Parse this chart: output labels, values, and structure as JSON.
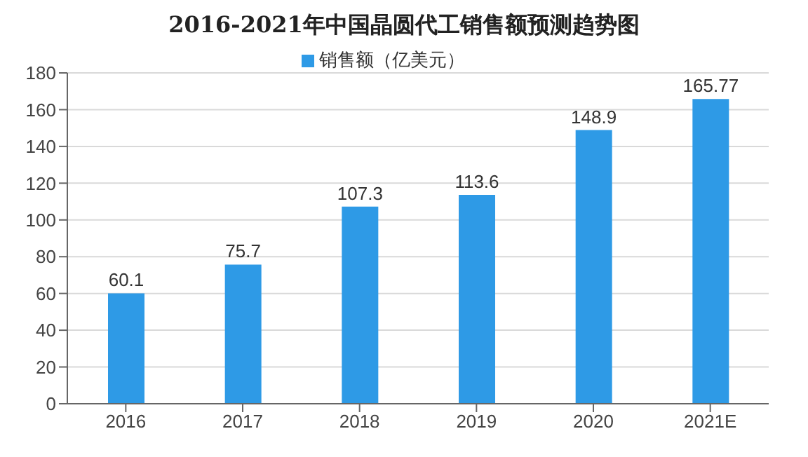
{
  "chart_data": {
    "type": "bar",
    "title": "2016-2021年中国晶圆代工销售额预测趋势图",
    "categories": [
      "2016",
      "2017",
      "2018",
      "2019",
      "2020",
      "2021E"
    ],
    "series": [
      {
        "name": "销售额（亿美元）",
        "color": "#2e9ae6",
        "values": [
          60.1,
          75.7,
          107.3,
          113.6,
          148.9,
          165.77
        ]
      }
    ],
    "ylim": [
      0,
      180
    ],
    "yticks": [
      0,
      20,
      40,
      60,
      80,
      100,
      120,
      140,
      160,
      180
    ],
    "grid": "y",
    "legend": "top",
    "data_labels": true
  }
}
